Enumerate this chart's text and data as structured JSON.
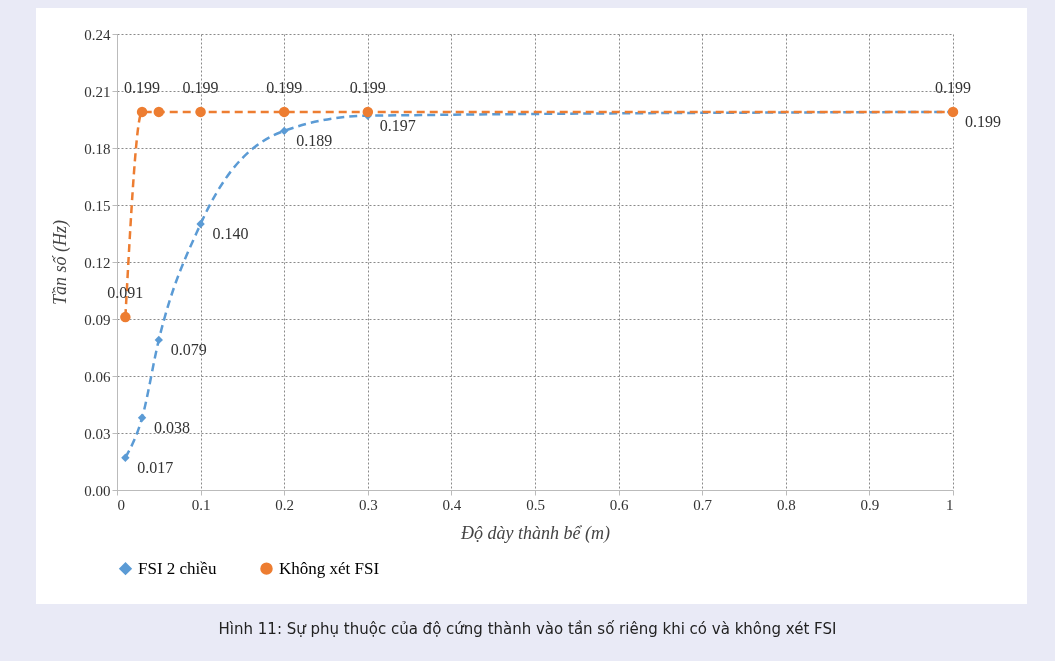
{
  "chart_data": {
    "type": "line",
    "xlabel": "Độ dày thành bể (m)",
    "ylabel": "Tần số (Hz)",
    "x": [
      0.01,
      0.03,
      0.05,
      0.1,
      0.2,
      0.3,
      1
    ],
    "series": [
      {
        "name": "FSI 2 chiều",
        "color": "#5b9bd5",
        "marker": "diamond",
        "line_style": "dashed",
        "values": [
          0.017,
          0.038,
          0.079,
          0.14,
          0.189,
          0.197,
          0.199
        ],
        "value_labels": [
          "0.017",
          "0.038",
          "0.079",
          "0.140",
          "0.189",
          "0.197",
          "0.199"
        ]
      },
      {
        "name": "Không xét FSI",
        "color": "#ed7d31",
        "marker": "circle",
        "line_style": "dashed",
        "values": [
          0.091,
          0.199,
          0.199,
          0.199,
          0.199,
          0.199,
          0.199
        ],
        "value_labels": [
          "0.091",
          "0.199",
          null,
          "0.199",
          "0.199",
          "0.199",
          "0.199"
        ]
      }
    ],
    "xlim": [
      0,
      1
    ],
    "xticks": [
      0,
      0.1,
      0.2,
      0.3,
      0.4,
      0.5,
      0.6,
      0.7,
      0.8,
      0.9,
      1
    ],
    "ylim": [
      0,
      0.24
    ],
    "yticks": [
      {
        "value": 0,
        "label": "0.00"
      },
      0.03,
      0.06,
      0.09,
      0.12,
      0.15,
      0.18,
      0.21,
      0.24
    ],
    "grid": true,
    "legend": "bottom",
    "annotations": [
      "Hình 11: Sự phụ thuộc của độ cứng thành vào tần số riêng khi có và không xét FSI"
    ]
  }
}
